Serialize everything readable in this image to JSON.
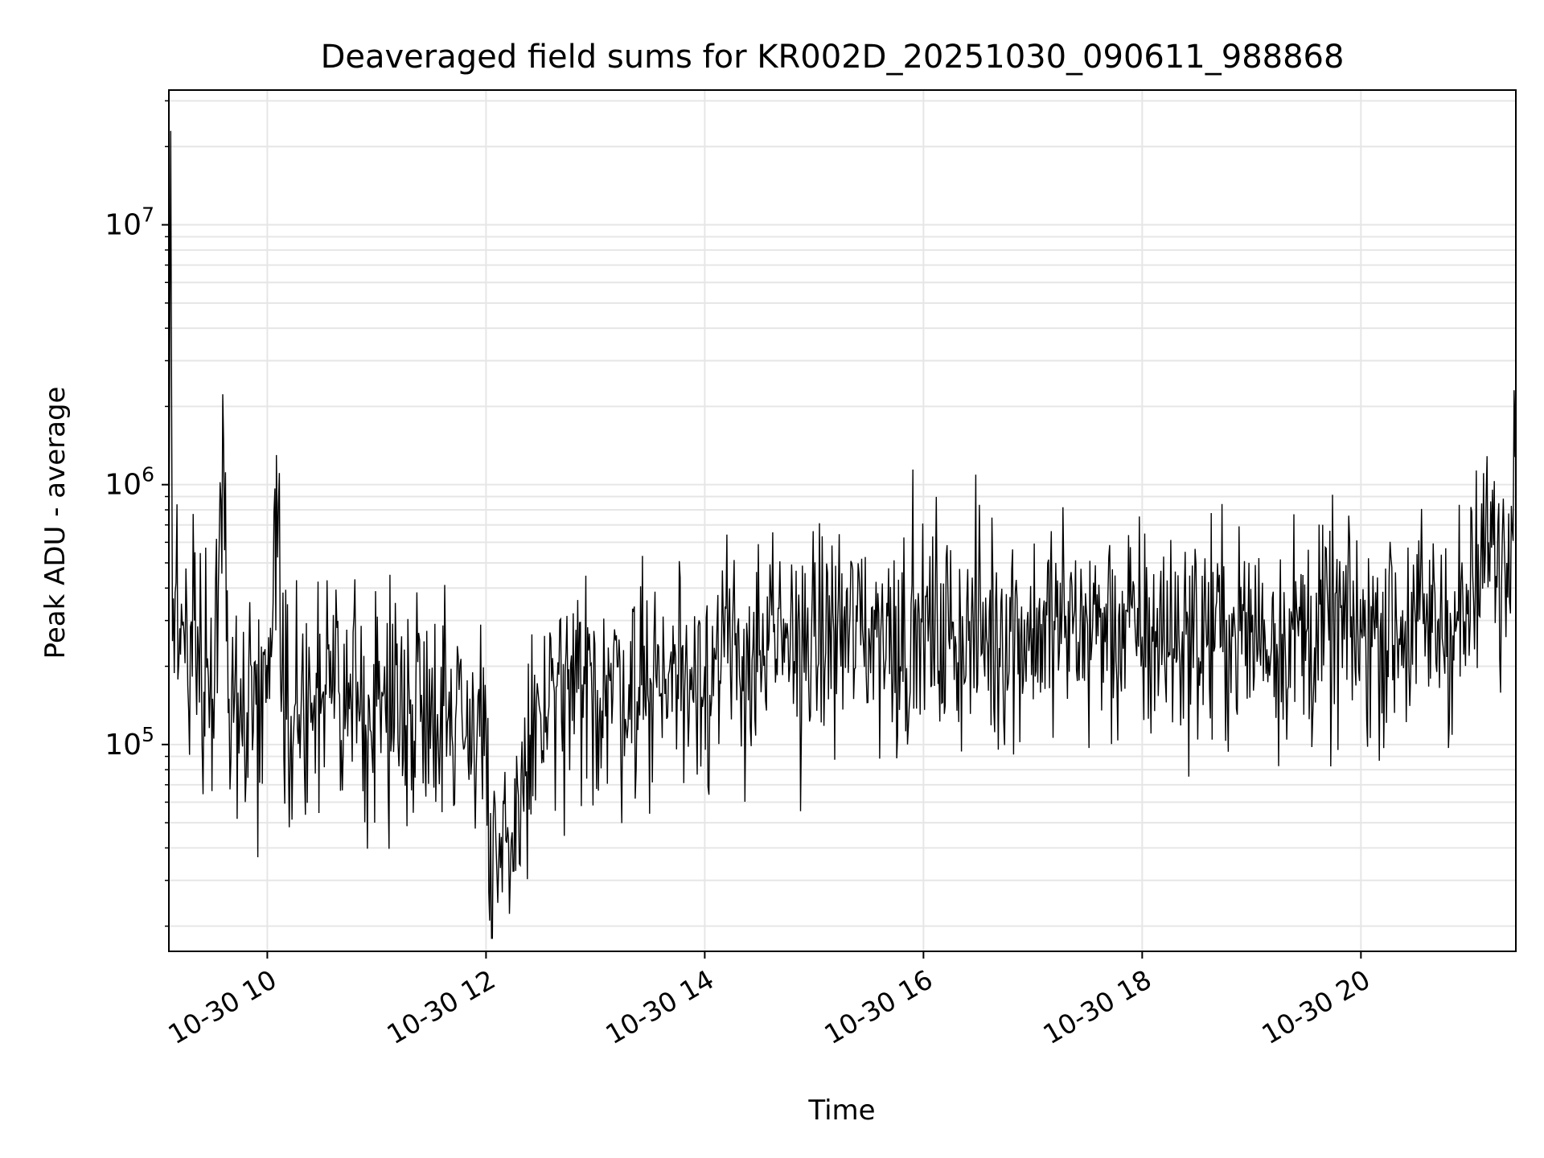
{
  "chart_data": {
    "type": "line",
    "title": "Deaveraged field sums for KR002D_20251030_090611_988868",
    "xlabel": "Time",
    "ylabel": "Peak ADU - average",
    "y_scale": "log",
    "ylim": [
      16000,
      33000000
    ],
    "xlim": [
      "2025-10-30 09:06",
      "2025-10-30 21:25"
    ],
    "grid": true,
    "line_color": "#000000",
    "grid_color": "#e6e6e6",
    "x_ticks": [
      {
        "value": "2025-10-30 10:00",
        "label": "10-30 10"
      },
      {
        "value": "2025-10-30 12:00",
        "label": "10-30 12"
      },
      {
        "value": "2025-10-30 14:00",
        "label": "10-30 14"
      },
      {
        "value": "2025-10-30 16:00",
        "label": "10-30 16"
      },
      {
        "value": "2025-10-30 18:00",
        "label": "10-30 18"
      },
      {
        "value": "2025-10-30 20:00",
        "label": "10-30 20"
      }
    ],
    "y_ticks": [
      {
        "value": 100000,
        "base": "10",
        "exp": "5"
      },
      {
        "value": 1000000,
        "base": "10",
        "exp": "6"
      },
      {
        "value": 10000000,
        "base": "10",
        "exp": "7"
      }
    ],
    "series": [
      {
        "values": {
          "x": [
            "2025-10-30 09:06",
            "2025-10-30 09:07",
            "2025-10-30 09:08",
            "2025-10-30 09:12",
            "2025-10-30 09:20",
            "2025-10-30 09:30",
            "2025-10-30 09:36",
            "2025-10-30 09:39",
            "2025-10-30 09:45",
            "2025-10-30 10:00",
            "2025-10-30 10:05",
            "2025-10-30 10:08",
            "2025-10-30 10:15",
            "2025-10-30 10:30",
            "2025-10-30 11:00",
            "2025-10-30 11:30",
            "2025-10-30 12:00",
            "2025-10-30 12:02",
            "2025-10-30 12:30",
            "2025-10-30 13:00",
            "2025-10-30 13:30",
            "2025-10-30 14:00",
            "2025-10-30 14:30",
            "2025-10-30 15:00",
            "2025-10-30 15:30",
            "2025-10-30 16:00",
            "2025-10-30 16:30",
            "2025-10-30 17:00",
            "2025-10-30 17:30",
            "2025-10-30 18:00",
            "2025-10-30 18:30",
            "2025-10-30 19:00",
            "2025-10-30 19:30",
            "2025-10-30 20:00",
            "2025-10-30 20:30",
            "2025-10-30 21:00",
            "2025-10-30 21:10",
            "2025-10-30 21:20",
            "2025-10-30 21:25"
          ],
          "y": [
            300000,
            23000000,
            250000,
            280000,
            300000,
            150000,
            1500000,
            150000,
            130000,
            150000,
            1300000,
            160000,
            140000,
            150000,
            140000,
            150000,
            120000,
            21000,
            130000,
            160000,
            180000,
            200000,
            220000,
            260000,
            280000,
            260000,
            270000,
            280000,
            290000,
            260000,
            270000,
            270000,
            270000,
            280000,
            290000,
            300000,
            600000,
            500000,
            2900000
          ]
        }
      }
    ]
  }
}
